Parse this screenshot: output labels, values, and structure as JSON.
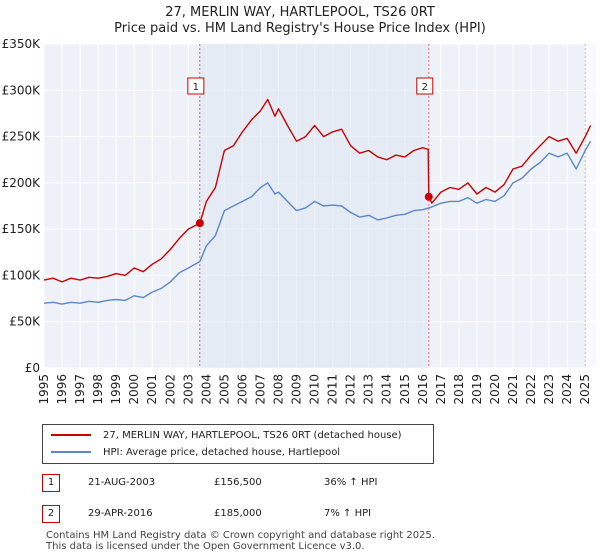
{
  "chart_data": {
    "type": "line",
    "title": "27, MERLIN WAY, HARTLEPOOL, TS26 0RT",
    "subtitle": "Price paid vs. HM Land Registry's House Price Index (HPI)",
    "xlim": [
      1995,
      2025.6
    ],
    "ylim": [
      0,
      350000
    ],
    "x_ticks": [
      "1995",
      "1996",
      "1997",
      "1998",
      "1999",
      "2000",
      "2001",
      "2002",
      "2003",
      "2004",
      "2005",
      "2006",
      "2007",
      "2008",
      "2009",
      "2010",
      "2011",
      "2012",
      "2013",
      "2014",
      "2015",
      "2016",
      "2017",
      "2018",
      "2019",
      "2020",
      "2021",
      "2022",
      "2023",
      "2024",
      "2025"
    ],
    "y_ticks": [
      0,
      50000,
      100000,
      150000,
      200000,
      250000,
      300000,
      350000
    ],
    "y_tick_labels": [
      "£0",
      "£50K",
      "£100K",
      "£150K",
      "£200K",
      "£250K",
      "£300K",
      "£350K"
    ],
    "series": [
      {
        "name": "27, MERLIN WAY, HARTLEPOOL, TS26 0RT (detached house)",
        "color": "#cc0000",
        "points": [
          [
            1995,
            95000
          ],
          [
            1995.5,
            97000
          ],
          [
            1996,
            93000
          ],
          [
            1996.5,
            97000
          ],
          [
            1997,
            95000
          ],
          [
            1997.5,
            98000
          ],
          [
            1998,
            97000
          ],
          [
            1998.5,
            99000
          ],
          [
            1999,
            102000
          ],
          [
            1999.5,
            100000
          ],
          [
            2000,
            108000
          ],
          [
            2000.5,
            104000
          ],
          [
            2001,
            112000
          ],
          [
            2001.5,
            118000
          ],
          [
            2002,
            128000
          ],
          [
            2002.5,
            140000
          ],
          [
            2003,
            150000
          ],
          [
            2003.64,
            156500
          ],
          [
            2004,
            180000
          ],
          [
            2004.5,
            195000
          ],
          [
            2005,
            235000
          ],
          [
            2005.5,
            240000
          ],
          [
            2006,
            255000
          ],
          [
            2006.5,
            268000
          ],
          [
            2007,
            278000
          ],
          [
            2007.4,
            290000
          ],
          [
            2007.8,
            272000
          ],
          [
            2008,
            280000
          ],
          [
            2008.5,
            262000
          ],
          [
            2009,
            245000
          ],
          [
            2009.5,
            250000
          ],
          [
            2010,
            262000
          ],
          [
            2010.5,
            250000
          ],
          [
            2011,
            255000
          ],
          [
            2011.5,
            258000
          ],
          [
            2012,
            240000
          ],
          [
            2012.5,
            232000
          ],
          [
            2013,
            235000
          ],
          [
            2013.5,
            228000
          ],
          [
            2014,
            225000
          ],
          [
            2014.5,
            230000
          ],
          [
            2015,
            228000
          ],
          [
            2015.5,
            235000
          ],
          [
            2016,
            238000
          ],
          [
            2016.3,
            236000
          ],
          [
            2016.33,
            185000
          ],
          [
            2016.5,
            178000
          ],
          [
            2017,
            190000
          ],
          [
            2017.5,
            195000
          ],
          [
            2018,
            193000
          ],
          [
            2018.5,
            200000
          ],
          [
            2019,
            188000
          ],
          [
            2019.5,
            195000
          ],
          [
            2020,
            190000
          ],
          [
            2020.5,
            198000
          ],
          [
            2021,
            215000
          ],
          [
            2021.5,
            218000
          ],
          [
            2022,
            230000
          ],
          [
            2022.5,
            240000
          ],
          [
            2023,
            250000
          ],
          [
            2023.5,
            245000
          ],
          [
            2024,
            248000
          ],
          [
            2024.5,
            232000
          ],
          [
            2025,
            250000
          ],
          [
            2025.3,
            262000
          ]
        ]
      },
      {
        "name": "HPI: Average price, detached house, Hartlepool",
        "color": "#5b87c9",
        "points": [
          [
            1995,
            70000
          ],
          [
            1995.5,
            71000
          ],
          [
            1996,
            69000
          ],
          [
            1996.5,
            71000
          ],
          [
            1997,
            70000
          ],
          [
            1997.5,
            72000
          ],
          [
            1998,
            71000
          ],
          [
            1998.5,
            73000
          ],
          [
            1999,
            74000
          ],
          [
            1999.5,
            73000
          ],
          [
            2000,
            78000
          ],
          [
            2000.5,
            76000
          ],
          [
            2001,
            82000
          ],
          [
            2001.5,
            86000
          ],
          [
            2002,
            93000
          ],
          [
            2002.5,
            103000
          ],
          [
            2003,
            108000
          ],
          [
            2003.64,
            115000
          ],
          [
            2004,
            132000
          ],
          [
            2004.5,
            143000
          ],
          [
            2005,
            170000
          ],
          [
            2005.5,
            175000
          ],
          [
            2006,
            180000
          ],
          [
            2006.5,
            185000
          ],
          [
            2007,
            195000
          ],
          [
            2007.4,
            200000
          ],
          [
            2007.8,
            188000
          ],
          [
            2008,
            190000
          ],
          [
            2008.5,
            180000
          ],
          [
            2009,
            170000
          ],
          [
            2009.5,
            173000
          ],
          [
            2010,
            180000
          ],
          [
            2010.5,
            175000
          ],
          [
            2011,
            176000
          ],
          [
            2011.5,
            175000
          ],
          [
            2012,
            168000
          ],
          [
            2012.5,
            163000
          ],
          [
            2013,
            165000
          ],
          [
            2013.5,
            160000
          ],
          [
            2014,
            162000
          ],
          [
            2014.5,
            165000
          ],
          [
            2015,
            166000
          ],
          [
            2015.5,
            170000
          ],
          [
            2016,
            171000
          ],
          [
            2016.33,
            173000
          ],
          [
            2016.5,
            174000
          ],
          [
            2017,
            178000
          ],
          [
            2017.5,
            180000
          ],
          [
            2018,
            180000
          ],
          [
            2018.5,
            184000
          ],
          [
            2019,
            178000
          ],
          [
            2019.5,
            182000
          ],
          [
            2020,
            180000
          ],
          [
            2020.5,
            186000
          ],
          [
            2021,
            200000
          ],
          [
            2021.5,
            205000
          ],
          [
            2022,
            215000
          ],
          [
            2022.5,
            222000
          ],
          [
            2023,
            232000
          ],
          [
            2023.5,
            228000
          ],
          [
            2024,
            232000
          ],
          [
            2024.5,
            215000
          ],
          [
            2025,
            235000
          ],
          [
            2025.3,
            245000
          ]
        ]
      }
    ],
    "markers": [
      {
        "label": "1",
        "x": 2003.64,
        "y": 156500
      },
      {
        "label": "2",
        "x": 2016.33,
        "y": 185000
      }
    ],
    "shaded_region": {
      "from": 2025.0,
      "to": 2025.6
    }
  },
  "legend": {
    "property_label": "27, MERLIN WAY, HARTLEPOOL, TS26 0RT (detached house)",
    "hpi_label": "HPI: Average price, detached house, Hartlepool"
  },
  "transactions": [
    {
      "num": "1",
      "date": "21-AUG-2003",
      "price": "£156,500",
      "hpi": "36% ↑ HPI"
    },
    {
      "num": "2",
      "date": "29-APR-2016",
      "price": "£185,000",
      "hpi": "7% ↑ HPI"
    }
  ],
  "footer": {
    "line1": "Contains HM Land Registry data © Crown copyright and database right 2025.",
    "line2": "This data is licensed under the Open Government Licence v3.0."
  }
}
